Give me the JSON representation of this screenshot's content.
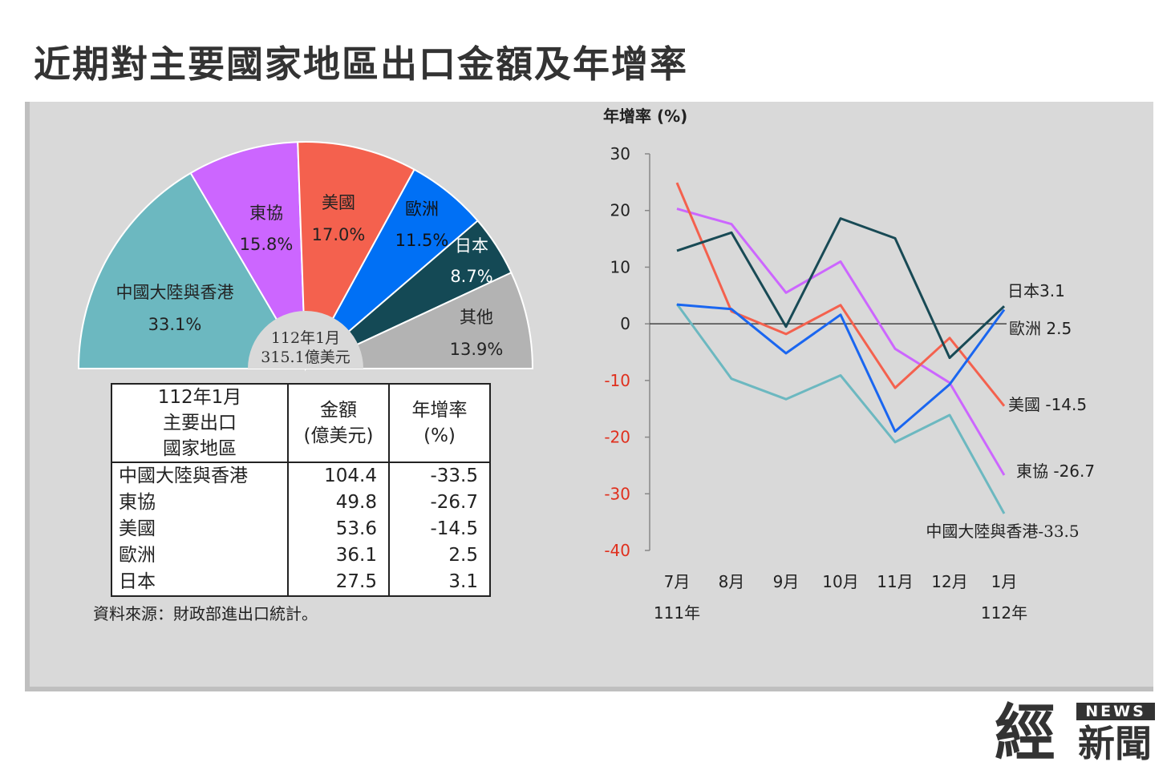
{
  "title": "近期對主要國家地區出口金額及年增率",
  "chart_data": [
    {
      "type": "pie",
      "variant": "semicircle",
      "center_label": [
        "112年1月",
        "315.1億美元"
      ],
      "slices": [
        {
          "name": "中國大陸與香港",
          "percent": 33.1,
          "label": "33.1%",
          "color": "#6cb8c0"
        },
        {
          "name": "東協",
          "percent": 15.8,
          "label": "15.8%",
          "color": "#cc66ff"
        },
        {
          "name": "美國",
          "percent": 17.0,
          "label": "17.0%",
          "color": "#f4614e"
        },
        {
          "name": "歐洲",
          "percent": 11.5,
          "label": "11.5%",
          "color": "#0070f5"
        },
        {
          "name": "日本",
          "percent": 8.7,
          "label": "8.7%",
          "color": "#144955"
        },
        {
          "name": "其他",
          "percent": 13.9,
          "label": "13.9%",
          "color": "#b3b3b3"
        }
      ]
    },
    {
      "type": "line",
      "ylabel": "年增率 (%)",
      "ylim": [
        -40,
        30
      ],
      "yticks": [
        30,
        20,
        10,
        0,
        -10,
        -20,
        -30,
        -40
      ],
      "categories": [
        "7月",
        "8月",
        "9月",
        "10月",
        "11月",
        "12月",
        "1月"
      ],
      "year_labels": [
        {
          "text": "111年",
          "at": 0
        },
        {
          "text": "112年",
          "at": 6
        }
      ],
      "series": [
        {
          "name": "中國大陸與香港",
          "end_label": "中國大陸與香港-33.5",
          "color": "#6cb8c0",
          "values": [
            3.5,
            -9.7,
            -13.3,
            -9.1,
            -20.9,
            -16.1,
            -33.5
          ]
        },
        {
          "name": "東協",
          "end_label": "東協 -26.7",
          "color": "#cc66ff",
          "values": [
            20.3,
            17.6,
            5.5,
            11.0,
            -4.4,
            -10.4,
            -26.7
          ]
        },
        {
          "name": "美國",
          "end_label": "美國 -14.5",
          "color": "#f4614e",
          "values": [
            24.9,
            2.2,
            -1.8,
            3.3,
            -11.3,
            -2.5,
            -14.5
          ]
        },
        {
          "name": "歐洲",
          "end_label": "歐洲 2.5",
          "color": "#1a66f0",
          "values": [
            3.4,
            2.6,
            -5.2,
            1.6,
            -19.0,
            -10.7,
            2.5
          ]
        },
        {
          "name": "日本",
          "end_label": "日本3.1",
          "color": "#184a55",
          "values": [
            12.9,
            16.1,
            -0.5,
            18.6,
            15.1,
            -6.0,
            3.1
          ]
        }
      ]
    }
  ],
  "table": {
    "headers": [
      [
        "112年1月",
        "主要出口",
        "國家地區"
      ],
      [
        "金額",
        "(億美元)"
      ],
      [
        "年增率",
        "(%)"
      ]
    ],
    "rows": [
      {
        "name": "中國大陸與香港",
        "amount": "104.4",
        "growth": "-33.5"
      },
      {
        "name": "東協",
        "amount": "49.8",
        "growth": "-26.7"
      },
      {
        "name": "美國",
        "amount": "53.6",
        "growth": "-14.5"
      },
      {
        "name": "歐洲",
        "amount": "36.1",
        "growth": "2.5"
      },
      {
        "name": "日本",
        "amount": "27.5",
        "growth": "3.1"
      }
    ]
  },
  "source": "資料來源：財政部進出口統計。",
  "logo": {
    "main": "經",
    "sub": "新聞",
    "badge": "NEWS"
  }
}
